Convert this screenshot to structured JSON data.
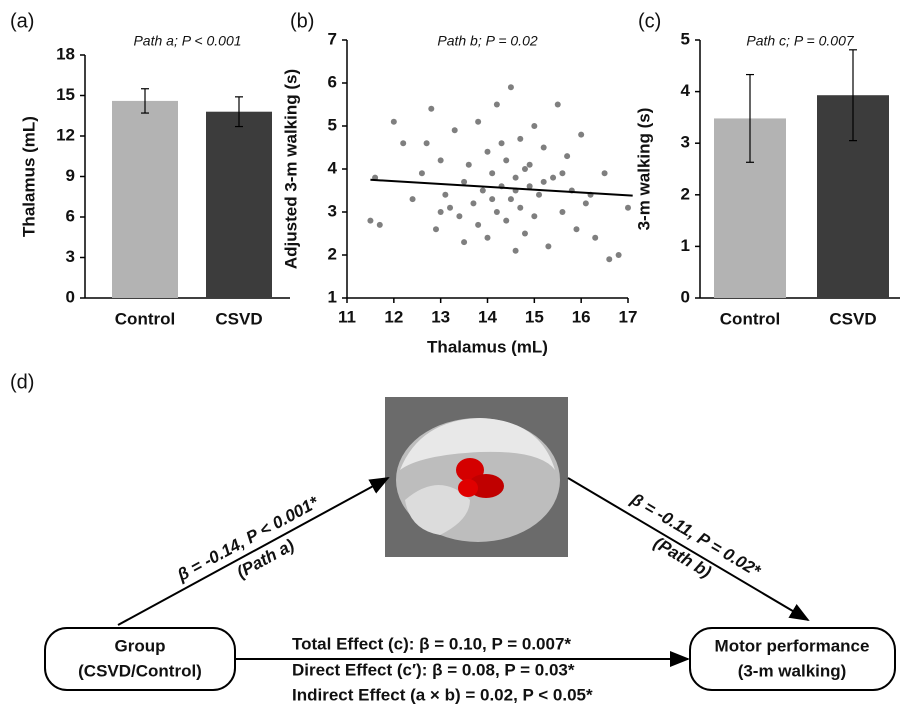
{
  "chart_data": [
    {
      "type": "bar",
      "panel_label": "(a)",
      "title": "Path a; P < 0.001",
      "y_label": "Thalamus (mL)",
      "categories": [
        "Control",
        "CSVD"
      ],
      "values": [
        14.6,
        13.8
      ],
      "errors": [
        0.9,
        1.1
      ],
      "colors": [
        "#b3b3b3",
        "#3c3c3c"
      ],
      "ylim": [
        0,
        18
      ],
      "yticks": [
        0,
        3,
        6,
        9,
        12,
        15,
        18
      ]
    },
    {
      "type": "scatter",
      "panel_label": "(b)",
      "title": "Path b; P = 0.02",
      "y_label": "Adjusted 3-m walking (s)",
      "x_label": "Thalamus (mL)",
      "color": "#7f7f7f",
      "x": [
        11.6,
        11.5,
        11.7,
        12.0,
        12.2,
        12.4,
        12.6,
        12.8,
        12.9,
        13.0,
        13.1,
        13.2,
        13.3,
        13.4,
        13.5,
        13.6,
        13.7,
        13.8,
        13.9,
        14.0,
        14.0,
        14.1,
        14.2,
        14.2,
        14.3,
        14.4,
        14.4,
        14.5,
        14.5,
        14.6,
        14.6,
        14.7,
        14.7,
        14.8,
        14.8,
        14.9,
        15.0,
        15.0,
        15.1,
        15.2,
        15.3,
        15.4,
        15.5,
        15.6,
        15.7,
        15.8,
        15.9,
        16.0,
        16.1,
        16.3,
        16.5,
        16.6,
        16.8,
        17.0,
        13.0,
        13.5,
        14.3,
        14.6,
        15.2,
        12.7,
        14.1,
        15.6,
        13.8,
        14.9,
        16.2
      ],
      "y": [
        3.8,
        2.8,
        2.7,
        5.1,
        4.6,
        3.3,
        3.9,
        5.4,
        2.6,
        4.2,
        3.4,
        3.1,
        4.9,
        2.9,
        3.7,
        4.1,
        3.2,
        5.1,
        3.5,
        2.4,
        4.4,
        3.9,
        3.0,
        5.5,
        3.6,
        2.8,
        4.2,
        3.3,
        5.9,
        3.8,
        2.1,
        4.7,
        3.1,
        2.5,
        4.0,
        3.6,
        5.0,
        2.9,
        3.4,
        4.5,
        2.2,
        3.8,
        5.5,
        3.0,
        4.3,
        3.5,
        2.6,
        4.8,
        3.2,
        2.4,
        3.9,
        1.9,
        2.0,
        3.1,
        3.0,
        2.3,
        4.6,
        3.5,
        3.7,
        4.6,
        3.3,
        3.9,
        2.7,
        4.1,
        3.4
      ],
      "trend_line": {
        "x": [
          11.5,
          17.1
        ],
        "y": [
          3.75,
          3.38
        ]
      },
      "xlim": [
        11,
        17
      ],
      "xticks": [
        11,
        12,
        13,
        14,
        15,
        16,
        17
      ],
      "ylim": [
        1,
        7
      ],
      "yticks": [
        1,
        2,
        3,
        4,
        5,
        6,
        7
      ]
    },
    {
      "type": "bar",
      "panel_label": "(c)",
      "title": "Path c; P = 0.007",
      "y_label": "3-m walking (s)",
      "categories": [
        "Control",
        "CSVD"
      ],
      "values": [
        3.48,
        3.93
      ],
      "errors": [
        0.85,
        0.88
      ],
      "colors": [
        "#b3b3b3",
        "#3c3c3c"
      ],
      "ylim": [
        0,
        5
      ],
      "yticks": [
        0,
        1,
        2,
        3,
        4,
        5
      ]
    }
  ],
  "diagram": {
    "panel_label": "(d)",
    "nodes": [
      {
        "lines": [
          "Group",
          "(CSVD/Control)"
        ]
      },
      {
        "lines": [
          "Motor performance",
          "(3-m walking)"
        ]
      }
    ],
    "path_a": [
      "β = -0.14, P < 0.001*",
      "(Path a)"
    ],
    "path_b": [
      "β = -0.11, P = 0.02*",
      "(Path b)"
    ],
    "effects": [
      "Total Effect (c): β = 0.10, P = 0.007*",
      "Direct Effect (c′): β = 0.08, P = 0.03*",
      "Indirect Effect (a × b) = 0.02, P < 0.05*"
    ]
  }
}
